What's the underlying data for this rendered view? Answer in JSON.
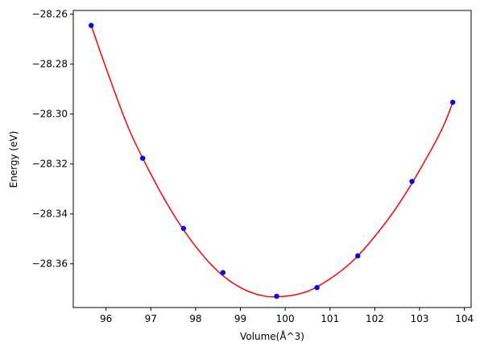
{
  "chart_data": {
    "type": "scatter",
    "title": "",
    "xlabel": "Volume(Å^3)",
    "ylabel": "Energy (eV)",
    "xlim": [
      95.27,
      104.15
    ],
    "ylim": [
      -28.3775,
      -28.2585
    ],
    "grid": false,
    "x_ticks": [
      96,
      97,
      98,
      99,
      100,
      101,
      102,
      103,
      104
    ],
    "x_tick_labels": [
      "96",
      "97",
      "98",
      "99",
      "100",
      "101",
      "102",
      "103",
      "104"
    ],
    "y_ticks": [
      -28.26,
      -28.28,
      -28.3,
      -28.32,
      -28.34,
      -28.36
    ],
    "y_tick_labels": [
      "−28.26",
      "−28.28",
      "−28.30",
      "−28.32",
      "−28.34",
      "−28.36"
    ],
    "series": [
      {
        "kind": "scatter",
        "color": "#0000ff",
        "x": [
          95.67,
          96.82,
          97.73,
          98.61,
          99.81,
          100.71,
          101.62,
          102.83,
          103.74
        ],
        "y": [
          -28.2645,
          -28.3177,
          -28.3458,
          -28.3635,
          -28.373,
          -28.3695,
          -28.3568,
          -28.327,
          -28.2953
        ]
      },
      {
        "kind": "fit-curve",
        "color": "#ff0000",
        "x": [
          95.67,
          96.0,
          96.5,
          97.0,
          97.5,
          98.0,
          98.5,
          99.0,
          99.5,
          100.0,
          100.5,
          101.0,
          101.5,
          102.0,
          102.5,
          103.0,
          103.5,
          103.74
        ],
        "y": [
          -28.2645,
          -28.2815,
          -28.3055,
          -28.324,
          -28.34,
          -28.353,
          -28.363,
          -28.3695,
          -28.3728,
          -28.373,
          -28.371,
          -28.366,
          -28.359,
          -28.349,
          -28.337,
          -28.3225,
          -28.306,
          -28.2953
        ]
      }
    ]
  }
}
